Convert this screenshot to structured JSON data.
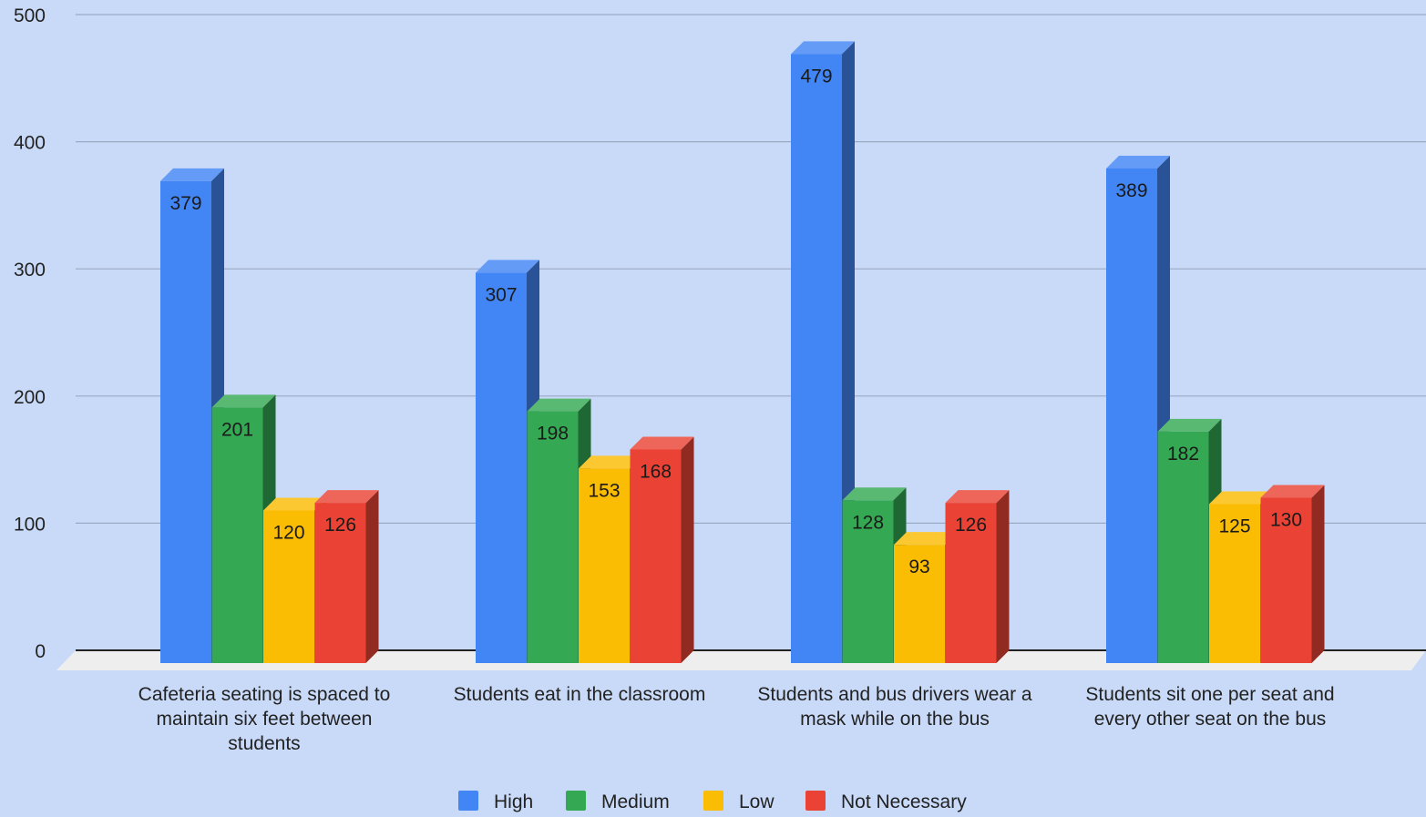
{
  "chart_data": {
    "type": "bar",
    "style": "3d-clustered",
    "background_color": "#c9daf8",
    "grid": true,
    "legend_position": "bottom",
    "ylim": [
      0,
      500
    ],
    "y_ticks": [
      "0",
      "100",
      "200",
      "300",
      "400",
      "500"
    ],
    "categories": [
      "Cafeteria seating is spaced to maintain six feet between students",
      "Students eat in the classroom",
      "Students and bus drivers wear a mask while on the bus",
      "Students sit one per seat and every other seat on the bus"
    ],
    "category_lines": [
      [
        "Cafeteria seating is spaced to",
        "maintain six feet between",
        "students"
      ],
      [
        "Students eat in the classroom"
      ],
      [
        "Students and bus drivers wear a",
        "mask while on the bus"
      ],
      [
        "Students sit one per seat and",
        "every other seat on the bus"
      ]
    ],
    "series": [
      {
        "name": "High",
        "color": "#4285f4",
        "values": [
          379,
          307,
          479,
          389
        ]
      },
      {
        "name": "Medium",
        "color": "#34a853",
        "values": [
          201,
          198,
          128,
          182
        ]
      },
      {
        "name": "Low",
        "color": "#fbbc04",
        "values": [
          120,
          153,
          93,
          125
        ]
      },
      {
        "name": "Not Necessary",
        "color": "#ea4335",
        "values": [
          126,
          168,
          126,
          130
        ]
      }
    ]
  }
}
